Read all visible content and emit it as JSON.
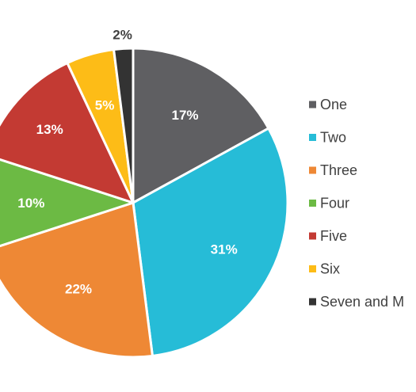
{
  "chart_data": {
    "type": "pie",
    "categories": [
      "One",
      "Two",
      "Three",
      "Four",
      "Five",
      "Six",
      "Seven and M"
    ],
    "values": [
      17,
      31,
      22,
      10,
      13,
      5,
      2
    ],
    "data_labels": [
      "17%",
      "31%",
      "22%",
      "10%",
      "13%",
      "5%",
      "2%"
    ],
    "colors": [
      "#5f5f62",
      "#26bcd7",
      "#ee8835",
      "#6cba44",
      "#c33a33",
      "#fdbc17",
      "#333333"
    ],
    "label_colors": [
      "#ffffff",
      "#ffffff",
      "#ffffff",
      "#ffffff",
      "#ffffff",
      "#ffffff",
      "#404040"
    ],
    "legend": "right",
    "start_angle_deg": 0,
    "direction": "clockwise"
  }
}
